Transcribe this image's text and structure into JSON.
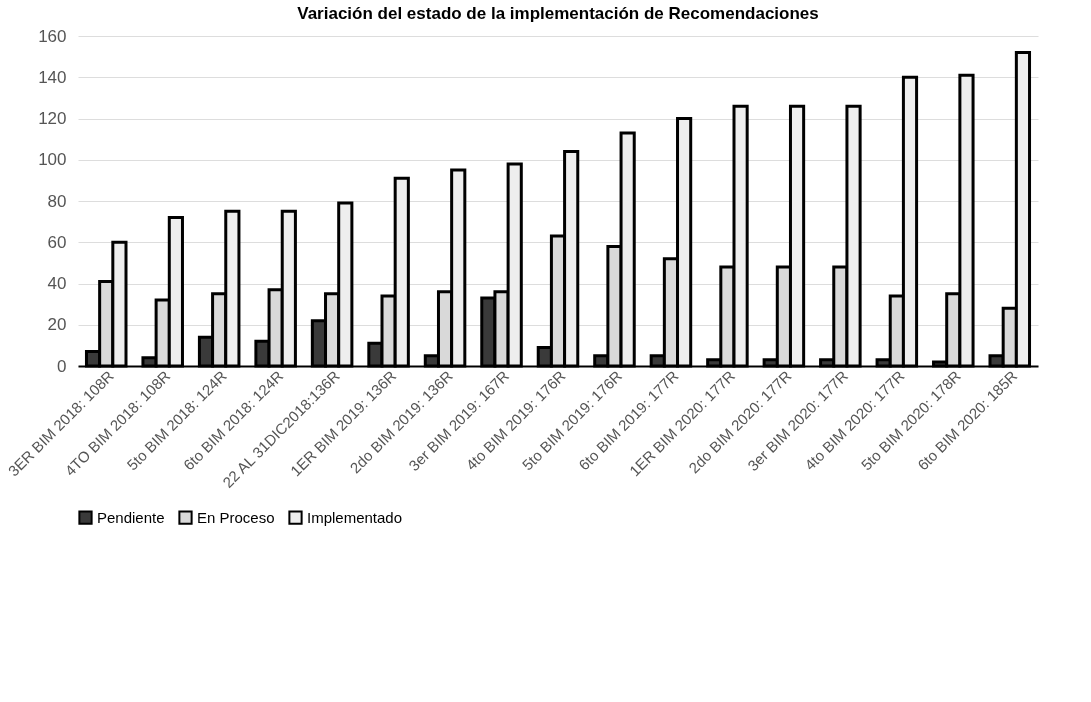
{
  "chart_data": {
    "type": "bar",
    "title": "Variación del estado de la implementación de Recomendaciones",
    "categories": [
      "3ER BIM 2018: 108R",
      "4TO BIM 2018: 108R",
      "5to BIM 2018: 124R",
      "6to BIM 2018: 124R",
      "22 AL 31DIC2018:136R",
      "1ER BIM 2019: 136R",
      "2do BIM 2019: 136R",
      "3er BIM 2019: 167R",
      "4to BIM 2019: 176R",
      "5to BIM 2019: 176R",
      "6to BIM 2019: 177R",
      "1ER BIM 2020: 177R",
      "2do BIM 2020: 177R",
      "3er BIM 2020: 177R",
      "4to BIM 2020: 177R",
      "5to BIM 2020: 178R",
      "6to BIM 2020: 185R"
    ],
    "series": [
      {
        "name": "Pendiente",
        "color": "#3a3a3a",
        "values": [
          7,
          4,
          14,
          12,
          22,
          11,
          5,
          33,
          9,
          5,
          5,
          3,
          3,
          3,
          3,
          2,
          5
        ]
      },
      {
        "name": "En Proceso",
        "color": "#d9d9d9",
        "values": [
          41,
          32,
          35,
          37,
          35,
          34,
          36,
          36,
          63,
          58,
          52,
          48,
          48,
          48,
          34,
          35,
          28
        ]
      },
      {
        "name": "Implementado",
        "color": "#eeeeee",
        "values": [
          60,
          72,
          75,
          75,
          79,
          91,
          95,
          98,
          104,
          113,
          120,
          126,
          126,
          126,
          140,
          141,
          152
        ]
      }
    ],
    "ylim": [
      0,
      160
    ],
    "yticks": [
      0,
      20,
      40,
      60,
      80,
      100,
      120,
      140,
      160
    ],
    "grid": "y",
    "legend": "bottom"
  }
}
